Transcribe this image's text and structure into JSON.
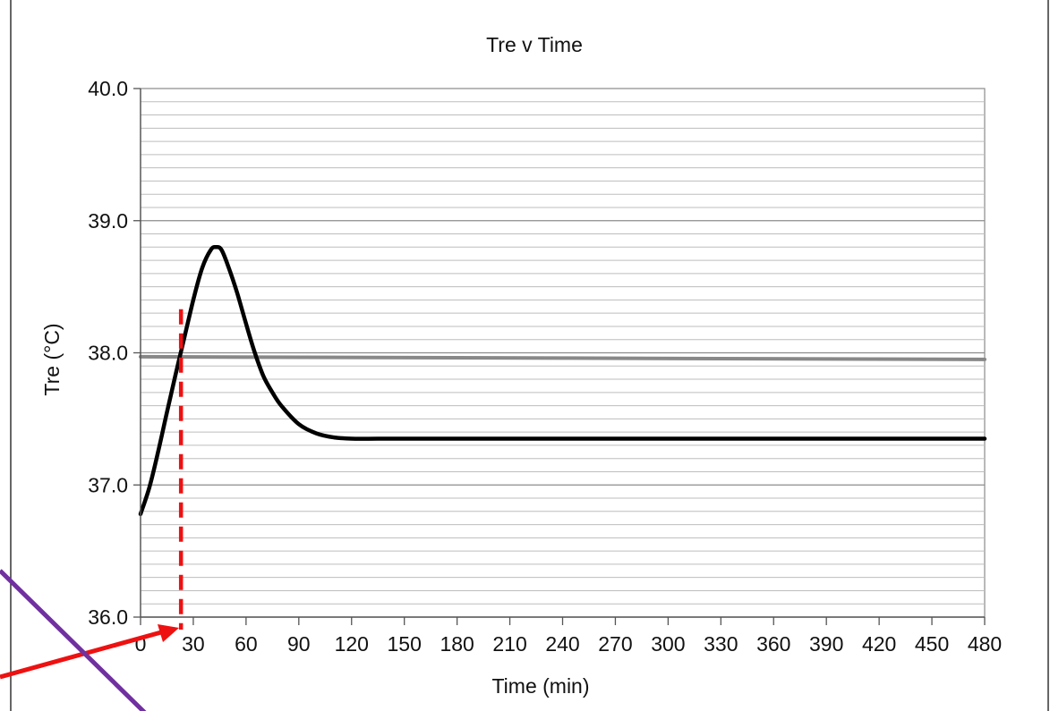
{
  "chart_data": {
    "type": "line",
    "title": "Tre v Time",
    "xlabel": "Time (min)",
    "ylabel": "Tre (°C)",
    "xlim": [
      0,
      480
    ],
    "ylim": [
      36.0,
      40.0
    ],
    "x_ticks": [
      0,
      30,
      60,
      90,
      120,
      150,
      180,
      210,
      240,
      270,
      300,
      330,
      360,
      390,
      420,
      450,
      480
    ],
    "y_ticks": [
      "36.0",
      "37.0",
      "38.0",
      "39.0",
      "40.0"
    ],
    "y_minor_step": 0.1,
    "grid": true,
    "legend": "none",
    "series": [
      {
        "color": "#000000",
        "x": [
          0,
          5,
          10,
          15,
          20,
          25,
          30,
          35,
          40,
          43,
          46,
          50,
          55,
          60,
          65,
          70,
          75,
          80,
          90,
          100,
          110,
          120,
          135,
          150,
          200,
          300,
          400,
          480
        ],
        "y": [
          36.78,
          36.98,
          37.25,
          37.55,
          37.84,
          38.12,
          38.4,
          38.64,
          38.78,
          38.8,
          38.78,
          38.65,
          38.45,
          38.22,
          38.0,
          37.82,
          37.7,
          37.6,
          37.46,
          37.39,
          37.36,
          37.35,
          37.35,
          37.35,
          37.35,
          37.35,
          37.35,
          37.35
        ]
      },
      {
        "color": "#888888",
        "x": [
          0,
          480
        ],
        "y": [
          37.97,
          37.95
        ]
      }
    ],
    "annotations": {
      "threshold_marker": {
        "type": "vertical-dashed",
        "x": 23,
        "y_from": 36.0,
        "y_to": 38.33,
        "color": "#ee1111"
      }
    }
  },
  "overlay": {
    "red_arrow_color": "#ee1111",
    "purple_line_color": "#7030a0"
  }
}
